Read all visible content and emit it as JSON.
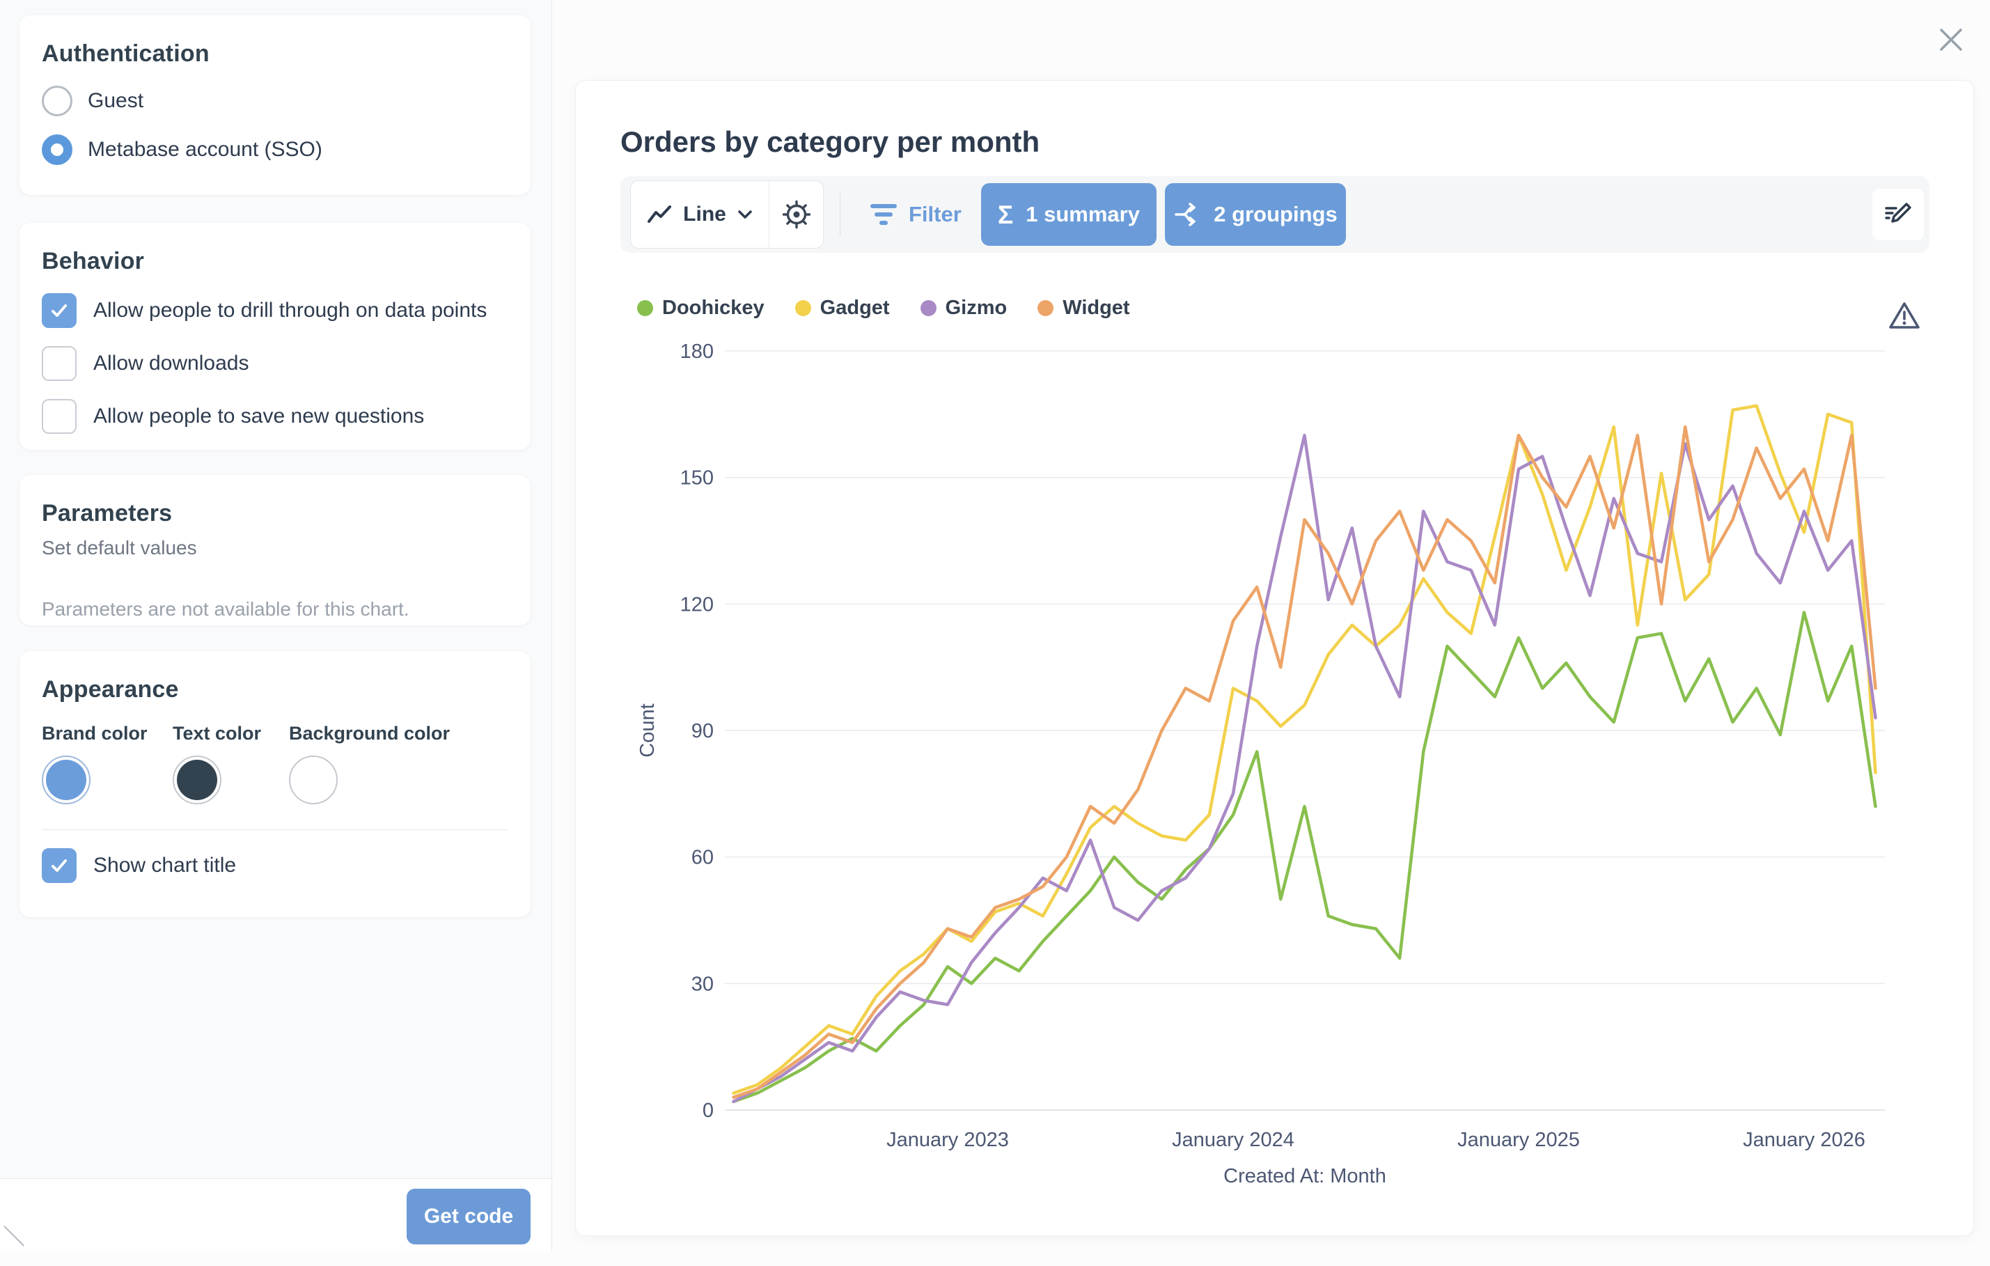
{
  "colors": {
    "accent_blue": "#6B9CD9",
    "checkbox_blue": "#6FA2DE",
    "brand_swatch": "#6C9DDB",
    "text_swatch": "#32424F",
    "background_swatch": "#FFFFFF",
    "grid": "#E7EAED",
    "axis_line": "#D9DDE1",
    "axis_text": "#4C5773",
    "dark_text": "#2E3B4E"
  },
  "sidebar": {
    "authentication": {
      "title": "Authentication",
      "options": [
        {
          "label": "Guest",
          "selected": false
        },
        {
          "label": "Metabase account (SSO)",
          "selected": true
        }
      ]
    },
    "behavior": {
      "title": "Behavior",
      "options": [
        {
          "label": "Allow people to drill through on data points",
          "checked": true
        },
        {
          "label": "Allow downloads",
          "checked": false
        },
        {
          "label": "Allow people to save new questions",
          "checked": false
        }
      ]
    },
    "parameters": {
      "title": "Parameters",
      "subtitle": "Set default values",
      "empty_message": "Parameters are not available for this chart."
    },
    "appearance": {
      "title": "Appearance",
      "colors": [
        {
          "label": "Brand color",
          "value": "#6C9DDB"
        },
        {
          "label": "Text color",
          "value": "#32424F"
        },
        {
          "label": "Background color",
          "value": "#FFFFFF"
        }
      ],
      "show_chart_title": {
        "label": "Show chart title",
        "checked": true
      }
    },
    "footer": {
      "get_code_label": "Get code"
    }
  },
  "preview": {
    "title": "Orders by category per month",
    "toolbar": {
      "chart_type_label": "Line",
      "filter_label": "Filter",
      "summary_label": "1 summary",
      "groupings_label": "2 groupings"
    }
  },
  "chart_data": {
    "type": "line",
    "title": "Orders by category per month",
    "xlabel": "Created At: Month",
    "ylabel": "Count",
    "ylim": [
      0,
      180
    ],
    "y_ticks": [
      0,
      30,
      60,
      90,
      120,
      150,
      180
    ],
    "grid": true,
    "legend_position": "top-left",
    "x": [
      "2022-04",
      "2022-05",
      "2022-06",
      "2022-07",
      "2022-08",
      "2022-09",
      "2022-10",
      "2022-11",
      "2022-12",
      "2023-01",
      "2023-02",
      "2023-03",
      "2023-04",
      "2023-05",
      "2023-06",
      "2023-07",
      "2023-08",
      "2023-09",
      "2023-10",
      "2023-11",
      "2023-12",
      "2024-01",
      "2024-02",
      "2024-03",
      "2024-04",
      "2024-05",
      "2024-06",
      "2024-07",
      "2024-08",
      "2024-09",
      "2024-10",
      "2024-11",
      "2024-12",
      "2025-01",
      "2025-02",
      "2025-03",
      "2025-04",
      "2025-05",
      "2025-06",
      "2025-07",
      "2025-08",
      "2025-09",
      "2025-10",
      "2025-11",
      "2025-12",
      "2026-01",
      "2026-02",
      "2026-03",
      "2026-04"
    ],
    "x_tick_labels": [
      {
        "label": "January 2023",
        "index": 9
      },
      {
        "label": "January 2024",
        "index": 21
      },
      {
        "label": "January 2025",
        "index": 33
      },
      {
        "label": "January 2026",
        "index": 45
      }
    ],
    "series": [
      {
        "name": "Doohickey",
        "color": "#88BF4D",
        "values": [
          2,
          4,
          7,
          10,
          14,
          17,
          14,
          20,
          25,
          34,
          30,
          36,
          33,
          40,
          46,
          52,
          60,
          54,
          50,
          57,
          62,
          70,
          85,
          50,
          72,
          46,
          44,
          43,
          36,
          85,
          110,
          104,
          98,
          112,
          100,
          106,
          98,
          92,
          112,
          113,
          97,
          107,
          92,
          100,
          89,
          118,
          97,
          110,
          72
        ]
      },
      {
        "name": "Gadget",
        "color": "#F2D14B",
        "values": [
          4,
          6,
          10,
          15,
          20,
          18,
          27,
          33,
          37,
          43,
          40,
          47,
          49,
          46,
          56,
          67,
          72,
          68,
          65,
          64,
          70,
          100,
          97,
          91,
          96,
          108,
          115,
          110,
          115,
          126,
          118,
          113,
          136,
          160,
          146,
          128,
          143,
          162,
          115,
          151,
          121,
          127,
          166,
          167,
          151,
          137,
          165,
          163,
          80
        ]
      },
      {
        "name": "Gizmo",
        "color": "#A989C5",
        "values": [
          2,
          5,
          8,
          12,
          16,
          14,
          22,
          28,
          26,
          25,
          35,
          42,
          48,
          55,
          52,
          64,
          48,
          45,
          52,
          55,
          62,
          75,
          110,
          136,
          160,
          121,
          138,
          110,
          98,
          142,
          130,
          128,
          115,
          152,
          155,
          138,
          122,
          145,
          132,
          130,
          158,
          140,
          148,
          132,
          125,
          142,
          128,
          135,
          93
        ]
      },
      {
        "name": "Widget",
        "color": "#EDA467",
        "values": [
          3,
          5,
          9,
          13,
          18,
          16,
          24,
          30,
          35,
          43,
          41,
          48,
          50,
          53,
          60,
          72,
          68,
          76,
          90,
          100,
          97,
          116,
          124,
          105,
          140,
          132,
          120,
          135,
          142,
          128,
          140,
          135,
          125,
          160,
          150,
          143,
          155,
          138,
          160,
          120,
          162,
          130,
          140,
          157,
          145,
          152,
          135,
          160,
          100
        ]
      }
    ]
  }
}
